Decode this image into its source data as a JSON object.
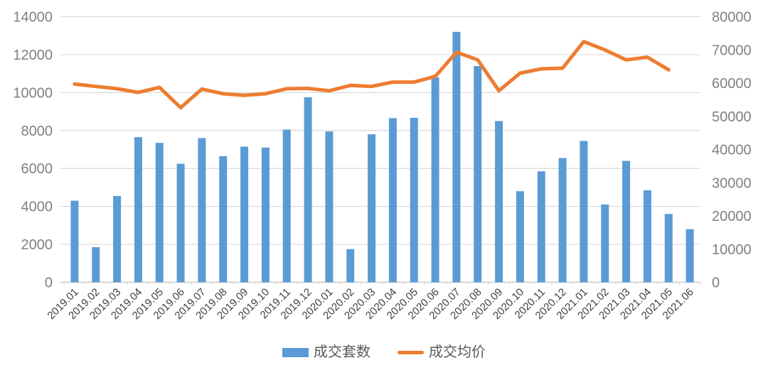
{
  "chart_data": {
    "type": "combo-bar-line",
    "title": "",
    "categories": [
      "2019.01",
      "2019.02",
      "2019.03",
      "2019.04",
      "2019.05",
      "2019.06",
      "2019.07",
      "2019.08",
      "2019.09",
      "2019.10",
      "2019.11",
      "2019.12",
      "2020.01",
      "2020.02",
      "2020.03",
      "2020.04",
      "2020.05",
      "2020.06",
      "2020.07",
      "2020.08",
      "2020.09",
      "2020.10",
      "2020.11",
      "2020.12",
      "2021.01",
      "2021.02",
      "2021.03",
      "2021.04",
      "2021.05",
      "2021.06"
    ],
    "series": [
      {
        "name": "成交套数",
        "type": "bar",
        "axis": "left",
        "color": "#5B9BD5",
        "values": [
          4300,
          1850,
          4550,
          7650,
          7350,
          6250,
          7600,
          6650,
          7150,
          7100,
          8050,
          9750,
          7950,
          1750,
          7800,
          8650,
          8670,
          10800,
          13200,
          11400,
          8500,
          4800,
          5850,
          6550,
          7450,
          4100,
          6400,
          4850,
          3600,
          2800
        ]
      },
      {
        "name": "成交均价",
        "type": "line",
        "axis": "right",
        "color": "#ED7D31",
        "values": [
          59700,
          59000,
          58300,
          57200,
          58700,
          52600,
          58200,
          56800,
          56300,
          56800,
          58300,
          58400,
          57700,
          59300,
          59000,
          60300,
          60300,
          62000,
          69300,
          67000,
          57700,
          63000,
          64300,
          64500,
          72500,
          70000,
          67000,
          67800,
          64000,
          null
        ]
      }
    ],
    "left_axis": {
      "min": 0,
      "max": 14000,
      "step": 2000,
      "tick_labels": [
        "0",
        "2000",
        "4000",
        "6000",
        "8000",
        "10000",
        "12000",
        "14000"
      ]
    },
    "right_axis": {
      "min": 0,
      "max": 80000,
      "step": 10000,
      "tick_labels": [
        "0",
        "10000",
        "20000",
        "30000",
        "40000",
        "50000",
        "60000",
        "70000",
        "80000"
      ]
    },
    "x_axis": {
      "label_rotation_deg": 45
    },
    "grid": true,
    "legend_position": "bottom"
  },
  "legend": {
    "bar_label": "成交套数",
    "line_label": "成交均价"
  },
  "colors": {
    "bar": "#5B9BD5",
    "line": "#ED7D31",
    "gridline": "#D9D9D9",
    "axis_line": "#C9C9C9",
    "y_tick_text": "#808080",
    "x_tick_text": "#3F3F3F",
    "legend_text": "#595959",
    "background": "#FFFFFF"
  }
}
